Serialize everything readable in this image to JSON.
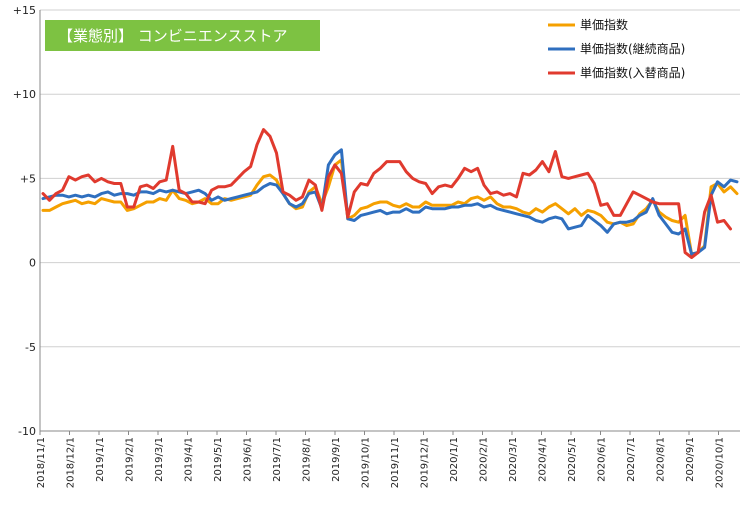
{
  "chart_data": {
    "type": "line",
    "badge": {
      "text": "【業態別】 コンビニエンスストア",
      "color": "#7dc242"
    },
    "ylim": [
      -10,
      15
    ],
    "yticks": [
      {
        "value": 15,
        "label": "+15"
      },
      {
        "value": 10,
        "label": "+10"
      },
      {
        "value": 5,
        "label": "+5"
      },
      {
        "value": 0,
        "label": "0"
      },
      {
        "value": -5,
        "label": "-5"
      },
      {
        "value": -10,
        "label": "-10"
      }
    ],
    "grid": true,
    "legend": "top-right",
    "xtick_labels": [
      "2018/11/1",
      "2018/12/1",
      "2019/1/1",
      "2019/2/1",
      "2019/3/1",
      "2019/4/1",
      "2019/5/1",
      "2019/6/1",
      "2019/7/1",
      "2019/8/1",
      "2019/9/1",
      "2019/10/1",
      "2019/11/1",
      "2019/12/1",
      "2020/1/1",
      "2020/2/1",
      "2020/3/1",
      "2020/4/1",
      "2020/5/1",
      "2020/6/1",
      "2020/7/1",
      "2020/8/1",
      "2020/9/1",
      "2020/10/1"
    ],
    "series": [
      {
        "name": "単価指数",
        "color": "#f5a000",
        "values": [
          3.1,
          3.1,
          3.3,
          3.5,
          3.6,
          3.7,
          3.5,
          3.6,
          3.5,
          3.8,
          3.7,
          3.6,
          3.6,
          3.1,
          3.2,
          3.4,
          3.6,
          3.6,
          3.8,
          3.7,
          4.3,
          3.8,
          3.7,
          3.5,
          3.6,
          3.8,
          3.5,
          3.5,
          3.8,
          3.7,
          3.8,
          3.9,
          4.0,
          4.6,
          5.1,
          5.2,
          4.9,
          4.1,
          3.5,
          3.2,
          3.3,
          4.2,
          4.5,
          3.5,
          4.5,
          5.8,
          6.1,
          2.6,
          2.8,
          3.2,
          3.3,
          3.5,
          3.6,
          3.6,
          3.4,
          3.3,
          3.5,
          3.3,
          3.3,
          3.6,
          3.4,
          3.4,
          3.4,
          3.4,
          3.6,
          3.5,
          3.8,
          3.9,
          3.7,
          3.9,
          3.5,
          3.3,
          3.3,
          3.2,
          3.0,
          2.9,
          3.2,
          3.0,
          3.3,
          3.5,
          3.2,
          2.9,
          3.2,
          2.8,
          3.1,
          3.0,
          2.8,
          2.4,
          2.3,
          2.4,
          2.2,
          2.3,
          2.9,
          3.2,
          3.7,
          3.0,
          2.7,
          2.5,
          2.4,
          2.8,
          0.5,
          0.6,
          1.0,
          4.5,
          4.7,
          4.2,
          4.5,
          4.1
        ]
      },
      {
        "name": "単価指数(継続商品)",
        "color": "#2f6fbf",
        "values": [
          3.8,
          3.9,
          4.0,
          4.0,
          3.9,
          4.0,
          3.9,
          4.0,
          3.9,
          4.1,
          4.2,
          4.0,
          4.1,
          4.1,
          4.0,
          4.2,
          4.2,
          4.1,
          4.3,
          4.2,
          4.3,
          4.2,
          4.1,
          4.2,
          4.3,
          4.1,
          3.7,
          3.9,
          3.7,
          3.8,
          3.9,
          4.0,
          4.1,
          4.2,
          4.5,
          4.7,
          4.6,
          4.1,
          3.5,
          3.3,
          3.5,
          4.1,
          4.2,
          3.2,
          5.8,
          6.4,
          6.7,
          2.6,
          2.5,
          2.8,
          2.9,
          3.0,
          3.1,
          2.9,
          3.0,
          3.0,
          3.2,
          3.0,
          3.0,
          3.3,
          3.2,
          3.2,
          3.2,
          3.3,
          3.3,
          3.4,
          3.4,
          3.5,
          3.3,
          3.4,
          3.2,
          3.1,
          3.0,
          2.9,
          2.8,
          2.7,
          2.5,
          2.4,
          2.6,
          2.7,
          2.6,
          2.0,
          2.1,
          2.2,
          2.8,
          2.5,
          2.2,
          1.8,
          2.3,
          2.4,
          2.4,
          2.5,
          2.8,
          3.0,
          3.8,
          2.8,
          2.3,
          1.8,
          1.7,
          2.0,
          0.5,
          0.6,
          0.9,
          4.0,
          4.8,
          4.5,
          4.9,
          4.8
        ]
      },
      {
        "name": "単価指数(入替商品)",
        "color": "#e03a2e",
        "values": [
          4.1,
          3.7,
          4.1,
          4.3,
          5.1,
          4.9,
          5.1,
          5.2,
          4.8,
          5.0,
          4.8,
          4.7,
          4.7,
          3.3,
          3.3,
          4.5,
          4.6,
          4.4,
          4.8,
          4.9,
          6.9,
          4.3,
          4.1,
          3.6,
          3.6,
          3.5,
          4.3,
          4.5,
          4.5,
          4.6,
          5.0,
          5.4,
          5.7,
          7.0,
          7.9,
          7.5,
          6.5,
          4.2,
          4.0,
          3.7,
          3.9,
          4.9,
          4.6,
          3.1,
          5.1,
          5.8,
          5.3,
          2.7,
          4.2,
          4.7,
          4.6,
          5.3,
          5.6,
          6.0,
          6.0,
          6.0,
          5.4,
          5.0,
          4.8,
          4.7,
          4.1,
          4.5,
          4.6,
          4.5,
          5.0,
          5.6,
          5.4,
          5.6,
          4.6,
          4.1,
          4.2,
          4.0,
          4.1,
          3.9,
          5.3,
          5.2,
          5.5,
          6.0,
          5.4,
          6.6,
          5.1,
          5.0,
          5.1,
          5.2,
          5.3,
          4.7,
          3.4,
          3.5,
          2.8,
          2.8,
          3.5,
          4.2,
          4.0,
          3.8,
          3.6,
          3.5,
          3.5,
          3.5,
          3.5,
          0.6,
          0.3,
          0.6,
          3.0,
          4.0,
          2.4,
          2.5,
          2.0
        ]
      }
    ]
  }
}
